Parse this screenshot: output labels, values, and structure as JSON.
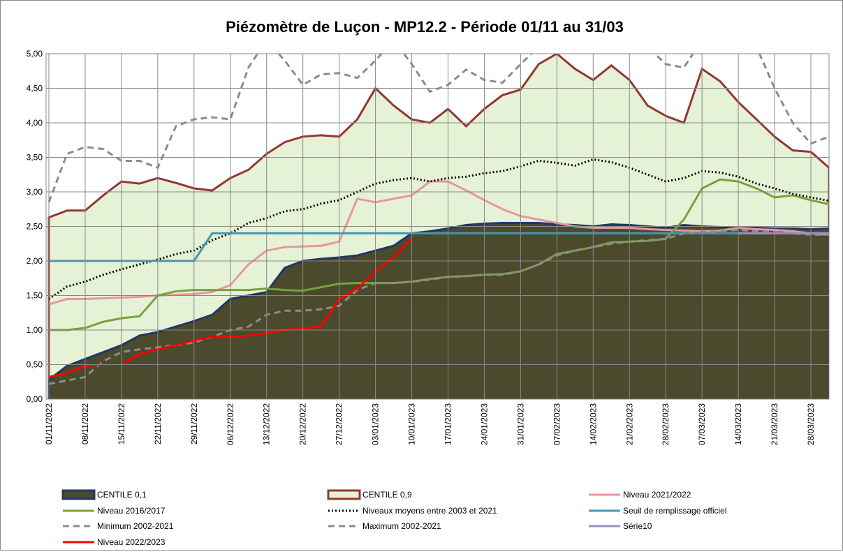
{
  "chart_data": {
    "type": "line",
    "title": "Piézomètre de Luçon - MP12.2 - Période 01/11 au 31/03",
    "categories": [
      "01/11/2022",
      null,
      "08/11/2022",
      null,
      "15/11/2022",
      null,
      "22/11/2022",
      null,
      "29/11/2022",
      null,
      "06/12/2022",
      null,
      "13/12/2022",
      null,
      "20/12/2022",
      null,
      "27/12/2022",
      null,
      "03/01/2023",
      null,
      "10/01/2023",
      null,
      "17/01/2023",
      null,
      "24/01/2023",
      null,
      "31/01/2023",
      null,
      "07/02/2023",
      null,
      "14/02/2023",
      null,
      "21/02/2023",
      null,
      "28/02/2023",
      null,
      "07/03/2023",
      null,
      "14/03/2023",
      null,
      "21/03/2023",
      null,
      "28/03/2023",
      null
    ],
    "ylim": [
      0,
      5
    ],
    "yticks": [
      {
        "value": 0,
        "label": "0,00"
      },
      {
        "value": 0.5,
        "label": "0,50"
      },
      {
        "value": 1,
        "label": "1,00"
      },
      {
        "value": 1.5,
        "label": "1,50"
      },
      {
        "value": 2,
        "label": "2,00"
      },
      {
        "value": 2.5,
        "label": "2,50"
      },
      {
        "value": 3,
        "label": "3,00"
      },
      {
        "value": 3.5,
        "label": "3,50"
      },
      {
        "value": 4,
        "label": "4,00"
      },
      {
        "value": 4.5,
        "label": "4,50"
      },
      {
        "value": 5,
        "label": "5,00"
      }
    ],
    "grid": true,
    "series": [
      {
        "name": "CENTILE 0,1",
        "kind": "area",
        "color": "#1f3864",
        "fill": "#4b4a2c",
        "dash": "solid",
        "values": [
          0.28,
          0.48,
          0.58,
          0.68,
          0.78,
          0.92,
          0.97,
          1.05,
          1.13,
          1.22,
          1.45,
          1.5,
          1.55,
          1.9,
          2.0,
          2.03,
          2.05,
          2.08,
          2.15,
          2.22,
          2.4,
          2.43,
          2.47,
          2.52,
          2.54,
          2.55,
          2.55,
          2.55,
          2.53,
          2.52,
          2.5,
          2.53,
          2.52,
          2.5,
          2.48,
          2.52,
          2.5,
          2.49,
          2.48,
          2.48,
          2.47,
          2.47,
          2.46,
          2.47
        ]
      },
      {
        "name": "CENTILE 0,9",
        "kind": "area",
        "color": "#943634",
        "fill": "#e6f2d6",
        "dash": "solid",
        "values": [
          2.63,
          2.73,
          2.73,
          2.95,
          3.15,
          3.12,
          3.2,
          3.13,
          3.05,
          3.02,
          3.2,
          3.32,
          3.55,
          3.72,
          3.8,
          3.82,
          3.8,
          4.05,
          4.5,
          4.25,
          4.05,
          4.0,
          4.2,
          3.95,
          4.2,
          4.4,
          4.48,
          4.85,
          5.0,
          4.78,
          4.62,
          4.83,
          4.62,
          4.25,
          4.1,
          4.0,
          4.78,
          4.6,
          4.3,
          4.05,
          3.8,
          3.6,
          3.58,
          3.35
        ]
      },
      {
        "name": "Niveau 2021/2022",
        "kind": "line",
        "color": "#e6989a",
        "dash": "solid",
        "values": [
          1.37,
          1.45,
          1.45,
          1.46,
          1.47,
          1.48,
          1.5,
          1.51,
          1.52,
          1.55,
          1.65,
          1.95,
          2.15,
          2.2,
          2.21,
          2.22,
          2.28,
          2.9,
          2.85,
          2.9,
          2.95,
          3.15,
          3.15,
          3.02,
          2.88,
          2.75,
          2.65,
          2.6,
          2.55,
          2.5,
          2.48,
          2.48,
          2.48,
          2.46,
          2.45,
          2.44,
          2.43,
          2.44,
          2.48,
          2.46,
          2.45,
          2.43,
          2.4,
          2.38
        ]
      },
      {
        "name": "Niveau 2016/2017",
        "kind": "line",
        "color": "#77a33a",
        "dash": "solid",
        "values": [
          1.0,
          1.0,
          1.03,
          1.12,
          1.17,
          1.2,
          1.5,
          1.56,
          1.58,
          1.58,
          1.58,
          1.58,
          1.6,
          1.58,
          1.57,
          1.62,
          1.67,
          1.68,
          1.68,
          1.68,
          1.7,
          1.74,
          1.77,
          1.78,
          1.8,
          1.81,
          1.85,
          1.95,
          2.1,
          2.15,
          2.2,
          2.27,
          2.28,
          2.29,
          2.32,
          2.6,
          3.05,
          3.18,
          3.15,
          3.05,
          2.92,
          2.95,
          2.88,
          2.82
        ]
      },
      {
        "name": "Niveaux moyens entre 2003 et 2021",
        "kind": "line",
        "color": "#000000",
        "dash": "dotted",
        "values": [
          1.45,
          1.63,
          1.7,
          1.8,
          1.88,
          1.95,
          2.02,
          2.1,
          2.15,
          2.3,
          2.4,
          2.55,
          2.62,
          2.72,
          2.75,
          2.83,
          2.88,
          3.0,
          3.12,
          3.17,
          3.2,
          3.15,
          3.2,
          3.22,
          3.27,
          3.3,
          3.37,
          3.45,
          3.42,
          3.38,
          3.47,
          3.43,
          3.35,
          3.25,
          3.15,
          3.2,
          3.3,
          3.28,
          3.22,
          3.12,
          3.05,
          2.97,
          2.92,
          2.87
        ]
      },
      {
        "name": "Seuil de remplissage officiel",
        "kind": "line",
        "color": "#4596b4",
        "dash": "solid",
        "values": [
          2.0,
          2.0,
          2.0,
          2.0,
          2.0,
          2.0,
          2.0,
          2.0,
          2.0,
          2.4,
          2.4,
          2.4,
          2.4,
          2.4,
          2.4,
          2.4,
          2.4,
          2.4,
          2.4,
          2.4,
          2.4,
          2.4,
          2.4,
          2.4,
          2.4,
          2.4,
          2.4,
          2.4,
          2.4,
          2.4,
          2.4,
          2.4,
          2.4,
          2.4,
          2.4,
          2.4,
          2.4,
          2.4,
          2.4,
          2.4,
          2.4,
          2.4,
          2.4,
          2.4
        ]
      },
      {
        "name": "Minimum 2002-2021",
        "kind": "line",
        "color": "#8c8c8c",
        "dash": "dashed",
        "values": [
          0.22,
          0.27,
          0.32,
          0.55,
          0.68,
          0.72,
          0.75,
          0.78,
          0.82,
          0.9,
          1.0,
          1.05,
          1.22,
          1.28,
          1.28,
          1.3,
          1.35,
          1.58,
          1.68,
          1.68,
          1.7,
          1.73,
          1.77,
          1.78,
          1.8,
          1.8,
          1.85,
          1.95,
          2.08,
          2.15,
          2.2,
          2.25,
          2.28,
          2.3,
          2.32,
          2.4,
          2.42,
          2.43,
          2.45,
          2.43,
          2.42,
          2.4,
          2.38,
          2.38
        ]
      },
      {
        "name": "Maximum 2002-2021",
        "kind": "line",
        "color": "#8c8c8c",
        "dash": "dashed",
        "values": [
          2.85,
          3.55,
          3.65,
          3.62,
          3.45,
          3.45,
          3.35,
          3.95,
          4.05,
          4.08,
          4.05,
          4.8,
          5.2,
          4.9,
          4.55,
          4.7,
          4.72,
          4.65,
          4.9,
          5.2,
          4.85,
          4.45,
          4.55,
          4.77,
          4.62,
          4.58,
          4.85,
          5.1,
          5.2,
          5.2,
          5.2,
          5.2,
          5.2,
          5.1,
          4.85,
          4.8,
          5.2,
          5.2,
          5.2,
          5.1,
          4.5,
          4.0,
          3.7,
          3.8
        ]
      },
      {
        "name": "Série10",
        "kind": "line",
        "color": "#a08cbf",
        "dash": "solid",
        "values": [
          null,
          null,
          null,
          null,
          null,
          null,
          null,
          null,
          null,
          null,
          null,
          null,
          null,
          null,
          null,
          null,
          null,
          null,
          null,
          null,
          null,
          null,
          null,
          null,
          null,
          null,
          null,
          null,
          null,
          null,
          null,
          null,
          null,
          null,
          null,
          null,
          null,
          null,
          2.4,
          2.4,
          2.4,
          2.4,
          2.4,
          2.4
        ]
      },
      {
        "name": "Niveau 2022/2023",
        "kind": "line",
        "color": "#ff0000",
        "dash": "solid",
        "values": [
          0.32,
          0.38,
          0.48,
          0.5,
          0.5,
          0.65,
          0.72,
          0.78,
          0.85,
          0.9,
          0.9,
          0.92,
          0.95,
          1.0,
          1.02,
          1.05,
          1.45,
          1.6,
          1.85,
          2.05,
          2.32,
          null,
          null,
          null,
          null,
          null,
          null,
          null,
          null,
          null,
          null,
          null,
          null,
          null,
          null,
          null,
          null,
          null,
          null,
          null,
          null,
          null,
          null,
          null
        ]
      }
    ]
  }
}
